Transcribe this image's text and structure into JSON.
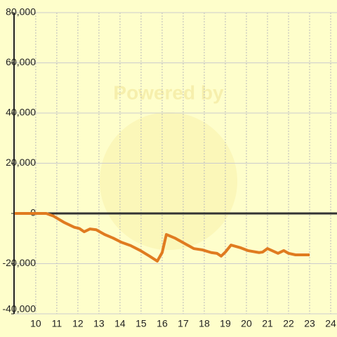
{
  "chart_data": {
    "type": "line",
    "watermark": "Powered by",
    "x": [
      9.0,
      10.5,
      10.83,
      11.33,
      11.83,
      12.07,
      12.3,
      12.57,
      12.87,
      13.27,
      13.67,
      14.07,
      14.5,
      14.97,
      15.4,
      15.77,
      16.0,
      16.2,
      16.6,
      17.07,
      17.5,
      17.9,
      18.33,
      18.6,
      18.8,
      19.0,
      19.27,
      19.73,
      20.07,
      20.6,
      20.77,
      21.0,
      21.5,
      21.77,
      22.0,
      22.33,
      23.0
    ],
    "series": [
      {
        "color": "#e07b20",
        "values": [
          0,
          0,
          -1000,
          -3500,
          -5500,
          -6000,
          -7300,
          -6200,
          -6500,
          -8400,
          -9800,
          -11500,
          -12800,
          -14800,
          -17000,
          -19000,
          -15600,
          -8400,
          -9800,
          -12000,
          -14000,
          -14500,
          -15600,
          -15900,
          -17000,
          -15400,
          -12600,
          -13700,
          -14800,
          -15600,
          -15400,
          -14000,
          -15900,
          -14800,
          -15900,
          -16500,
          -16500
        ]
      }
    ],
    "xlim": [
      8.97,
      24.3
    ],
    "xticks": [
      10,
      11,
      12,
      13,
      14,
      15,
      16,
      17,
      18,
      19,
      20,
      21,
      22,
      23,
      24
    ],
    "ylim": [
      -40000,
      80000
    ],
    "yticks": [
      {
        "value": -40000,
        "label": "-40,000"
      },
      {
        "value": -20000,
        "label": "-20,000"
      },
      0,
      {
        "value": 20000,
        "label": "20,000"
      },
      {
        "value": 40000,
        "label": "40,000"
      },
      {
        "value": 60000,
        "label": "60,000"
      },
      {
        "value": 80000,
        "label": "80,000"
      }
    ],
    "grid": true
  }
}
